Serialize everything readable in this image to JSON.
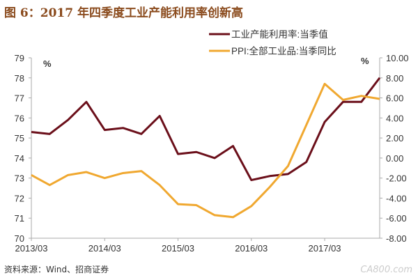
{
  "title": "图 6：2017 年四季度工业产能利用率创新高",
  "source": "资料来源：Wind、招商证券",
  "watermark": "CA800.com",
  "chart_data": {
    "type": "line",
    "x": [
      "2013/03",
      "2013/06",
      "2013/09",
      "2013/12",
      "2014/03",
      "2014/06",
      "2014/09",
      "2014/12",
      "2015/03",
      "2015/06",
      "2015/09",
      "2015/12",
      "2016/03",
      "2016/06",
      "2016/09",
      "2016/12",
      "2017/03",
      "2017/06",
      "2017/09",
      "2017/12"
    ],
    "xticks": [
      "2013/03",
      "2014/03",
      "2015/03",
      "2016/03",
      "2017/03"
    ],
    "series": [
      {
        "name": "工业产能利用率:当季值",
        "axis": "left",
        "color": "#6b0f1a",
        "values": [
          75.3,
          75.2,
          75.9,
          76.8,
          75.4,
          75.5,
          75.2,
          76.1,
          74.2,
          74.3,
          74.0,
          74.6,
          72.9,
          73.1,
          73.2,
          73.8,
          75.8,
          76.8,
          76.8,
          78.0
        ]
      },
      {
        "name": "PPI:全部工业品:当季同比",
        "axis": "right",
        "color": "#f0a830",
        "values": [
          -1.7,
          -2.7,
          -1.7,
          -1.4,
          -2.0,
          -1.5,
          -1.3,
          -2.7,
          -4.6,
          -4.7,
          -5.7,
          -5.9,
          -4.8,
          -2.9,
          -0.8,
          3.3,
          7.4,
          5.8,
          6.2,
          5.9
        ]
      }
    ],
    "left_axis": {
      "label": "%",
      "ylim": [
        70,
        79
      ],
      "ticks": [
        "70",
        "71",
        "72",
        "73",
        "74",
        "75",
        "76",
        "77",
        "78",
        "79"
      ]
    },
    "right_axis": {
      "label": "%",
      "ylim": [
        -8,
        10
      ],
      "ticks": [
        "-8.00",
        "-6.00",
        "-4.00",
        "-2.00",
        "0.00",
        "2.00",
        "4.00",
        "6.00",
        "8.00",
        "10.00"
      ]
    },
    "legend": "top-right",
    "grid": false
  }
}
